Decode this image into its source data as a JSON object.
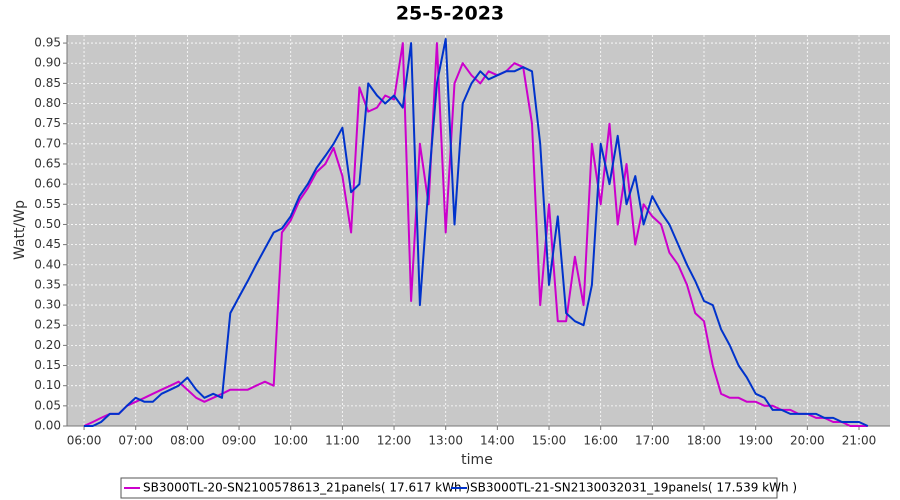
{
  "chart_data": {
    "type": "line",
    "title": "25-5-2023",
    "x_label": "time",
    "y_label": "Watt/Wp",
    "grid": true,
    "legend": "bottom",
    "x": [
      6,
      6.17,
      6.33,
      6.5,
      6.67,
      6.83,
      7,
      7.17,
      7.33,
      7.5,
      7.67,
      7.83,
      8,
      8.17,
      8.33,
      8.5,
      8.67,
      8.83,
      9,
      9.17,
      9.33,
      9.5,
      9.67,
      9.83,
      10,
      10.17,
      10.33,
      10.5,
      10.67,
      10.83,
      11,
      11.17,
      11.33,
      11.5,
      11.67,
      11.83,
      12,
      12.17,
      12.33,
      12.5,
      12.67,
      12.83,
      13,
      13.17,
      13.33,
      13.5,
      13.67,
      13.83,
      14,
      14.17,
      14.33,
      14.5,
      14.67,
      14.83,
      15,
      15.17,
      15.33,
      15.5,
      15.67,
      15.83,
      16,
      16.17,
      16.33,
      16.5,
      16.67,
      16.83,
      17,
      17.17,
      17.33,
      17.5,
      17.67,
      17.83,
      18,
      18.17,
      18.33,
      18.5,
      18.67,
      18.83,
      19,
      19.17,
      19.33,
      19.5,
      19.67,
      19.83,
      20,
      20.17,
      20.33,
      20.5,
      20.67,
      20.83,
      21,
      21.17
    ],
    "series": [
      {
        "name": "SB3000TL-20-SN2100578613_21panels( 17.617 kWh )",
        "color": "#cc00cc",
        "values": [
          0,
          0.01,
          0.02,
          0.03,
          0.03,
          0.05,
          0.06,
          0.07,
          0.08,
          0.09,
          0.1,
          0.11,
          0.09,
          0.07,
          0.06,
          0.07,
          0.08,
          0.09,
          0.09,
          0.09,
          0.1,
          0.11,
          0.1,
          0.48,
          0.51,
          0.56,
          0.59,
          0.63,
          0.65,
          0.69,
          0.62,
          0.48,
          0.84,
          0.78,
          0.79,
          0.82,
          0.81,
          0.95,
          0.31,
          0.7,
          0.55,
          0.95,
          0.48,
          0.85,
          0.9,
          0.87,
          0.85,
          0.88,
          0.87,
          0.88,
          0.9,
          0.89,
          0.75,
          0.3,
          0.55,
          0.26,
          0.26,
          0.42,
          0.3,
          0.7,
          0.55,
          0.75,
          0.5,
          0.65,
          0.45,
          0.55,
          0.52,
          0.5,
          0.43,
          0.4,
          0.35,
          0.28,
          0.26,
          0.15,
          0.08,
          0.07,
          0.07,
          0.06,
          0.06,
          0.05,
          0.05,
          0.04,
          0.04,
          0.03,
          0.03,
          0.02,
          0.02,
          0.01,
          0.01,
          0,
          0,
          0
        ]
      },
      {
        "name": "SB3000TL-21-SN2130032031_19panels( 17.539 kWh )",
        "color": "#0033cc",
        "values": [
          0,
          0,
          0.01,
          0.03,
          0.03,
          0.05,
          0.07,
          0.06,
          0.06,
          0.08,
          0.09,
          0.1,
          0.12,
          0.09,
          0.07,
          0.08,
          0.07,
          0.28,
          0.32,
          0.36,
          0.4,
          0.44,
          0.48,
          0.49,
          0.52,
          0.57,
          0.6,
          0.64,
          0.67,
          0.7,
          0.74,
          0.58,
          0.6,
          0.85,
          0.82,
          0.8,
          0.82,
          0.79,
          0.95,
          0.3,
          0.6,
          0.85,
          0.96,
          0.5,
          0.8,
          0.85,
          0.88,
          0.86,
          0.87,
          0.88,
          0.88,
          0.89,
          0.88,
          0.7,
          0.35,
          0.52,
          0.28,
          0.26,
          0.25,
          0.35,
          0.7,
          0.6,
          0.72,
          0.55,
          0.62,
          0.5,
          0.57,
          0.53,
          0.5,
          0.45,
          0.4,
          0.36,
          0.31,
          0.3,
          0.24,
          0.2,
          0.15,
          0.12,
          0.08,
          0.07,
          0.04,
          0.04,
          0.03,
          0.03,
          0.03,
          0.03,
          0.02,
          0.02,
          0.01,
          0.01,
          0.01,
          0
        ]
      }
    ],
    "xlim": [
      5.67,
      21.6
    ],
    "xticks": [
      {
        "value": 6,
        "label": "06:00"
      },
      {
        "value": 7,
        "label": "07:00"
      },
      {
        "value": 8,
        "label": "08:00"
      },
      {
        "value": 9,
        "label": "09:00"
      },
      {
        "value": 10,
        "label": "10:00"
      },
      {
        "value": 11,
        "label": "11:00"
      },
      {
        "value": 12,
        "label": "12:00"
      },
      {
        "value": 13,
        "label": "13:00"
      },
      {
        "value": 14,
        "label": "14:00"
      },
      {
        "value": 15,
        "label": "15:00"
      },
      {
        "value": 16,
        "label": "16:00"
      },
      {
        "value": 17,
        "label": "17:00"
      },
      {
        "value": 18,
        "label": "18:00"
      },
      {
        "value": 19,
        "label": "19:00"
      },
      {
        "value": 20,
        "label": "20:00"
      },
      {
        "value": 21,
        "label": "21:00"
      }
    ],
    "ylim": [
      0,
      0.97
    ],
    "yticks": [
      {
        "value": 0,
        "label": "0.00"
      },
      0.05,
      {
        "value": 0.1,
        "label": "0.10"
      },
      0.15,
      {
        "value": 0.2,
        "label": "0.20"
      },
      0.25,
      {
        "value": 0.3,
        "label": "0.30"
      },
      0.35,
      {
        "value": 0.4,
        "label": "0.40"
      },
      0.45,
      {
        "value": 0.5,
        "label": "0.50"
      },
      0.55,
      {
        "value": 0.6,
        "label": "0.60"
      },
      0.65,
      {
        "value": 0.7,
        "label": "0.70"
      },
      0.75,
      {
        "value": 0.8,
        "label": "0.80"
      },
      0.85,
      {
        "value": 0.9,
        "label": "0.90"
      },
      0.95
    ]
  }
}
